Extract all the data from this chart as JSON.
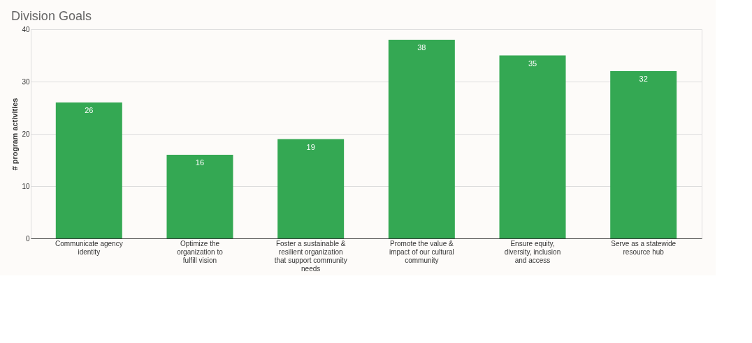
{
  "chart_data": {
    "type": "bar",
    "title": "Division Goals",
    "ylabel": "# program activities",
    "categories": [
      "Communicate agency identity",
      "Optimize the organization to fulfill vision",
      "Foster a sustainable & resilient organization that support community needs",
      "Promote the value & impact of our cultural community",
      "Ensure equity, diversity, inclusion and access",
      "Serve as a statewide resource hub"
    ],
    "values": [
      26,
      16,
      19,
      38,
      35,
      32
    ],
    "color": "#34a853",
    "ylim": [
      0,
      40
    ],
    "yticks": [
      0,
      10,
      20,
      30,
      40
    ],
    "grid": "y",
    "data_labels": true
  }
}
